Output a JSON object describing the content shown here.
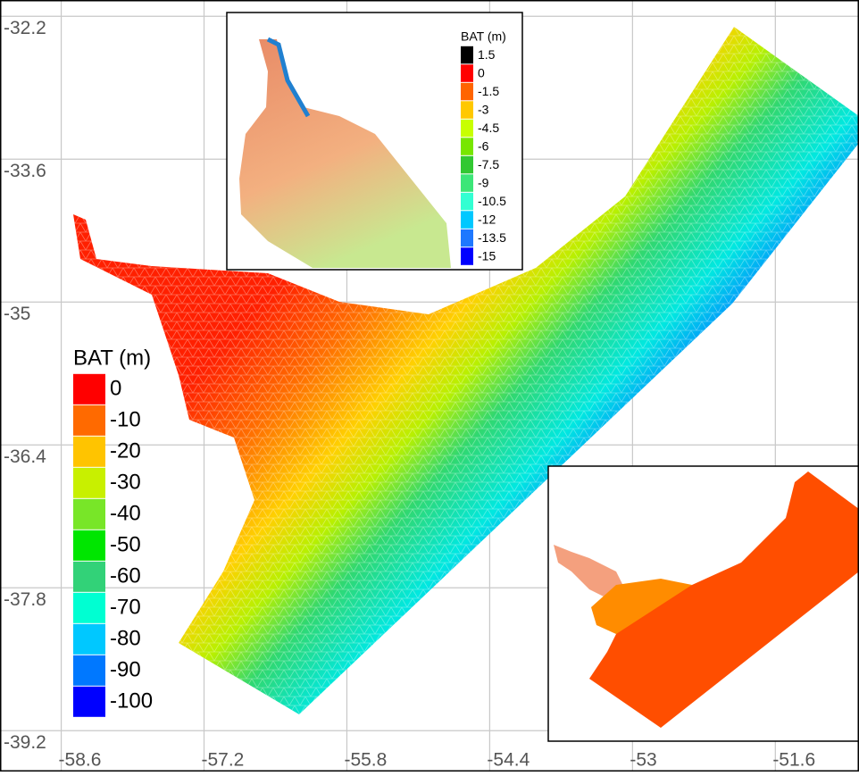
{
  "map": {
    "xlim": [
      -59.2,
      -50.78
    ],
    "ylim": [
      -39.6,
      -32.04
    ],
    "xticks": [
      -58.6,
      -57.2,
      -55.8,
      -54.4,
      -53,
      -51.6
    ],
    "yticks": [
      -32.2,
      -33.6,
      -35,
      -36.4,
      -37.8,
      -39.2
    ],
    "grid": true,
    "legend": {
      "title": "BAT (m)",
      "values": [
        0,
        -10,
        -20,
        -30,
        -40,
        -50,
        -60,
        -70,
        -80,
        -90,
        -100
      ],
      "colors": [
        "#ff0000",
        "#ff6a00",
        "#ffc400",
        "#c8f000",
        "#78e628",
        "#00e600",
        "#32d278",
        "#00ffd2",
        "#00c8ff",
        "#0078ff",
        "#0000ff"
      ]
    },
    "inset_legend": {
      "title": "BAT (m)",
      "values": [
        1.5,
        0,
        -1.5,
        -3,
        -4.5,
        -6,
        -7.5,
        -9,
        -10.5,
        -12,
        -13.5,
        -15
      ],
      "colors": [
        "#000000",
        "#ff0000",
        "#ff6400",
        "#ffc800",
        "#c8ff00",
        "#78e600",
        "#32c832",
        "#3ce678",
        "#32ffd2",
        "#00c8ff",
        "#1e78ff",
        "#0000ff"
      ]
    }
  }
}
